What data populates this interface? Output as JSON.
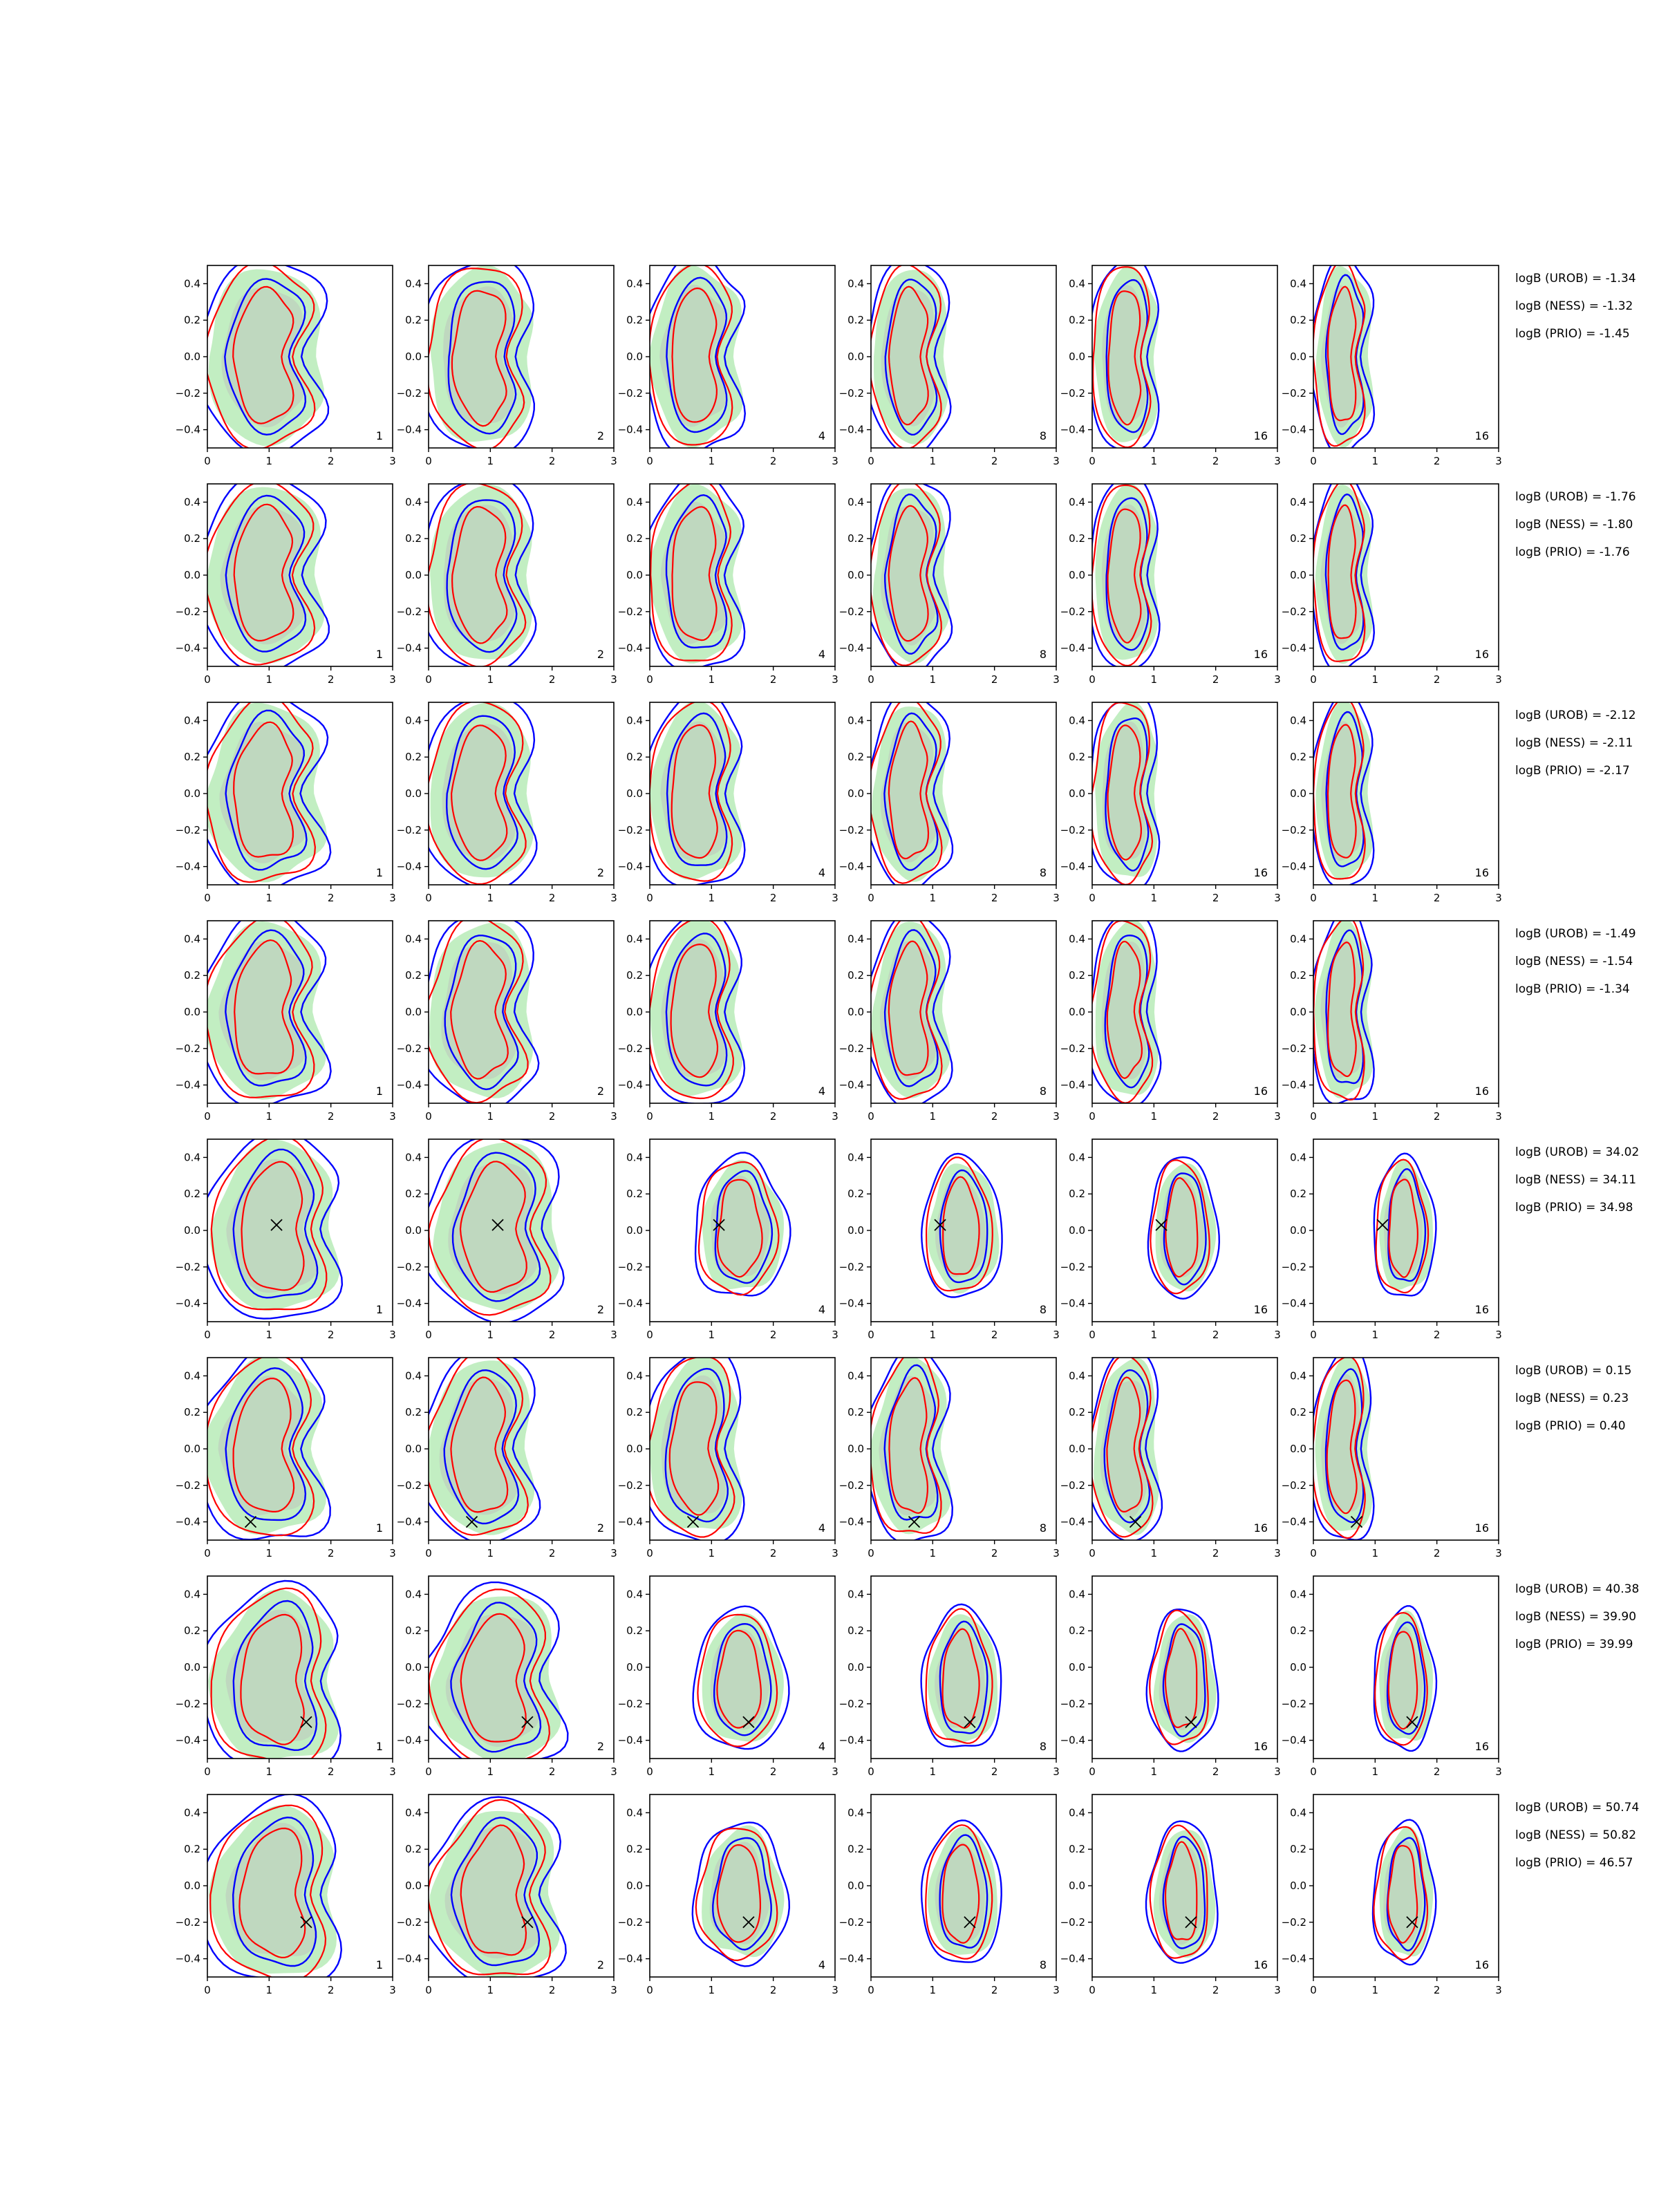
{
  "chart_data": {
    "type": "contour-grid",
    "rows": 8,
    "cols": 6,
    "xlim": [
      0,
      3
    ],
    "ylim": [
      -0.5,
      0.5
    ],
    "xticks": [
      "0",
      "1",
      "2",
      "3"
    ],
    "yticks": [
      "−0.4",
      "−0.2",
      "0.0",
      "0.2",
      "0.4"
    ],
    "ytick_values": [
      -0.4,
      -0.2,
      0.0,
      0.2,
      0.4
    ],
    "xtick_values": [
      0,
      1,
      2,
      3
    ],
    "panel_labels": [
      "1",
      "2",
      "4",
      "8",
      "16",
      "16"
    ],
    "colors": {
      "green_fill": "#90e090",
      "gray_fill": "#bcbcbc",
      "red_line": "#ff0000",
      "blue_line": "#0000ff",
      "marker": "#000000"
    },
    "shape_profiles": {
      "crescent": {
        "cx": 0.25,
        "bulge": 1.0
      },
      "blob": {
        "cx": 1.45,
        "bulge": 0.0
      }
    },
    "rows_data": [
      {
        "logB": [
          "logB (UROB) = -1.34",
          "logB (NESS) = -1.32",
          "logB (PRIO) = -1.45"
        ],
        "marker": null,
        "mode": "crescent"
      },
      {
        "logB": [
          "logB (UROB) = -1.76",
          "logB (NESS) = -1.80",
          "logB (PRIO) = -1.76"
        ],
        "marker": null,
        "mode": "crescent"
      },
      {
        "logB": [
          "logB (UROB) = -2.12",
          "logB (NESS) = -2.11",
          "logB (PRIO) = -2.17"
        ],
        "marker": null,
        "mode": "crescent"
      },
      {
        "logB": [
          "logB (UROB) = -1.49",
          "logB (NESS) = -1.54",
          "logB (PRIO) = -1.34"
        ],
        "marker": null,
        "mode": "crescent"
      },
      {
        "logB": [
          "logB (UROB) = 34.02",
          "logB (NESS) = 34.11",
          "logB (PRIO) = 34.98"
        ],
        "marker": [
          1.12,
          0.03
        ],
        "mode": "blob"
      },
      {
        "logB": [
          "logB (UROB) = 0.15",
          "logB (NESS) = 0.23",
          "logB (PRIO) = 0.40"
        ],
        "marker": [
          0.7,
          -0.4
        ],
        "mode": "crescent"
      },
      {
        "logB": [
          "logB (UROB) = 40.38",
          "logB (NESS) = 39.90",
          "logB (PRIO) = 39.99"
        ],
        "marker": [
          1.6,
          -0.3
        ],
        "mode": "blob"
      },
      {
        "logB": [
          "logB (UROB) = 50.74",
          "logB (NESS) = 50.82",
          "logB (PRIO) = 46.57"
        ],
        "marker": [
          1.6,
          -0.2
        ],
        "mode": "blob"
      }
    ]
  }
}
